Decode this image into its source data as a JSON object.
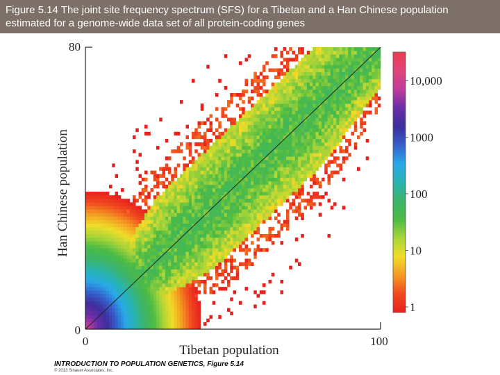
{
  "header": {
    "title": "Figure 5.14  The joint site frequency spectrum (SFS) for a Tibetan and a Han Chinese population estimated for a genome-wide data set of all protein-coding genes"
  },
  "chart_data": {
    "type": "heatmap",
    "title": "",
    "xlabel": "Tibetan population",
    "ylabel": "Han Chinese population",
    "xlim": [
      0,
      100
    ],
    "ylim": [
      0,
      80
    ],
    "x_ticks": [
      "0",
      "100"
    ],
    "y_ticks": [
      "0",
      "80"
    ],
    "diagonal_line": {
      "from": [
        0,
        0
      ],
      "to": [
        100,
        80
      ]
    },
    "colorbar": {
      "scale": "log",
      "ticks": [
        "10,000",
        "1000",
        "100",
        "10",
        "1"
      ],
      "tick_values": [
        10000,
        1000,
        100,
        10,
        1
      ],
      "colors": [
        "#e8201e",
        "#f04a1e",
        "#f49a22",
        "#f0dc28",
        "#a8d438",
        "#4cbb44",
        "#3cb46a",
        "#28b4b0",
        "#29a8e8",
        "#3560cc",
        "#3c2e9c",
        "#6a2ea8",
        "#c03c9c",
        "#e0447a",
        "#ec3c50"
      ]
    },
    "density_description_values": {
      "ridge_width_bins": 14,
      "peak_count_near_origin": 10000,
      "typical_ridge_count": 10
    }
  },
  "footer": {
    "credit": "INTRODUCTION TO POPULATION GENETICS, Figure 5.14",
    "copyright": "© 2013 Sinauer Associates, Inc."
  }
}
